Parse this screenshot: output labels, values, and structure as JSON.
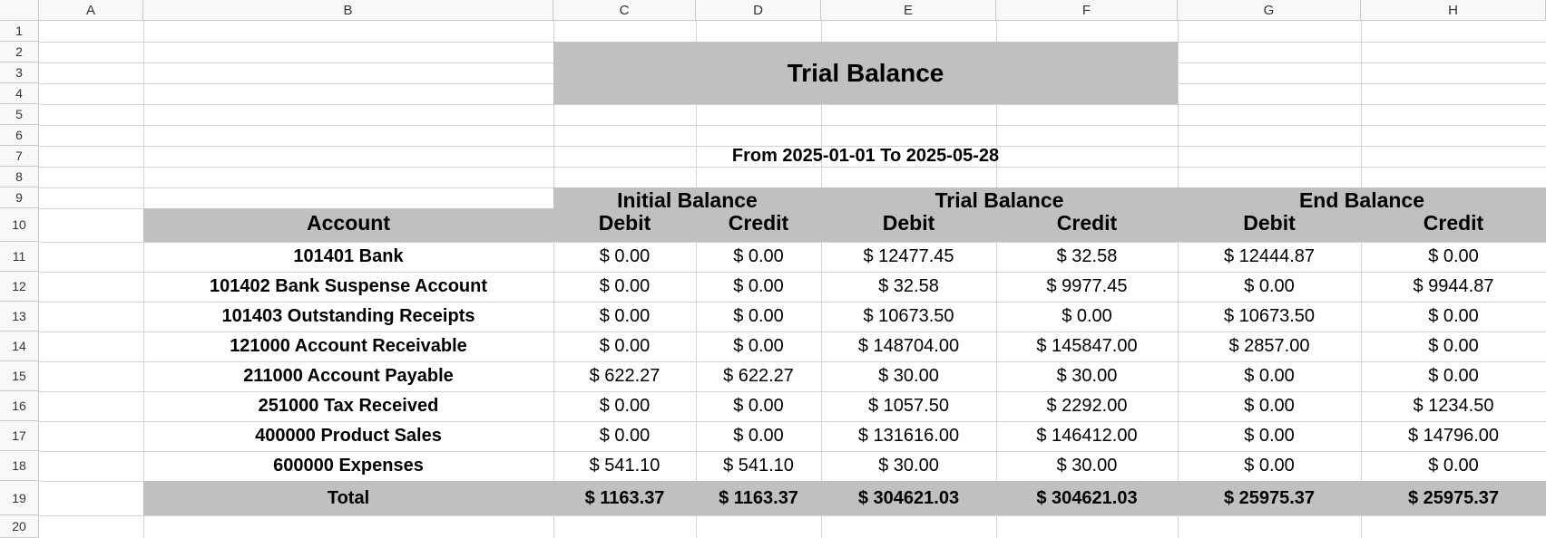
{
  "columns": [
    "A",
    "B",
    "C",
    "D",
    "E",
    "F",
    "G",
    "H"
  ],
  "rows": [
    "1",
    "2",
    "3",
    "4",
    "5",
    "6",
    "7",
    "8",
    "9",
    "10",
    "11",
    "12",
    "13",
    "14",
    "15",
    "16",
    "17",
    "18",
    "19",
    "20"
  ],
  "title": "Trial Balance",
  "date_range": "From 2025-01-01 To 2025-05-28",
  "groups": {
    "initial": "Initial Balance",
    "trial": "Trial Balance",
    "end": "End Balance"
  },
  "header": {
    "account": "Account",
    "debit": "Debit",
    "credit": "Credit"
  },
  "accounts": [
    {
      "name": "101401 Bank",
      "v": [
        "$ 0.00",
        "$ 0.00",
        "$ 12477.45",
        "$ 32.58",
        "$ 12444.87",
        "$ 0.00"
      ]
    },
    {
      "name": "101402 Bank Suspense Account",
      "v": [
        "$ 0.00",
        "$ 0.00",
        "$ 32.58",
        "$ 9977.45",
        "$ 0.00",
        "$ 9944.87"
      ]
    },
    {
      "name": "101403 Outstanding Receipts",
      "v": [
        "$ 0.00",
        "$ 0.00",
        "$ 10673.50",
        "$ 0.00",
        "$ 10673.50",
        "$ 0.00"
      ]
    },
    {
      "name": "121000 Account Receivable",
      "v": [
        "$ 0.00",
        "$ 0.00",
        "$ 148704.00",
        "$ 145847.00",
        "$ 2857.00",
        "$ 0.00"
      ]
    },
    {
      "name": "211000 Account Payable",
      "v": [
        "$ 622.27",
        "$ 622.27",
        "$ 30.00",
        "$ 30.00",
        "$ 0.00",
        "$ 0.00"
      ]
    },
    {
      "name": "251000 Tax Received",
      "v": [
        "$ 0.00",
        "$ 0.00",
        "$ 1057.50",
        "$ 2292.00",
        "$ 0.00",
        "$ 1234.50"
      ]
    },
    {
      "name": "400000 Product Sales",
      "v": [
        "$ 0.00",
        "$ 0.00",
        "$ 131616.00",
        "$ 146412.00",
        "$ 0.00",
        "$ 14796.00"
      ]
    },
    {
      "name": "600000 Expenses",
      "v": [
        "$ 541.10",
        "$ 541.10",
        "$ 30.00",
        "$ 30.00",
        "$ 0.00",
        "$ 0.00"
      ]
    }
  ],
  "total": {
    "name": "Total",
    "v": [
      "$ 1163.37",
      "$ 1163.37",
      "$ 304621.03",
      "$ 304621.03",
      "$ 25975.37",
      "$ 25975.37"
    ]
  }
}
